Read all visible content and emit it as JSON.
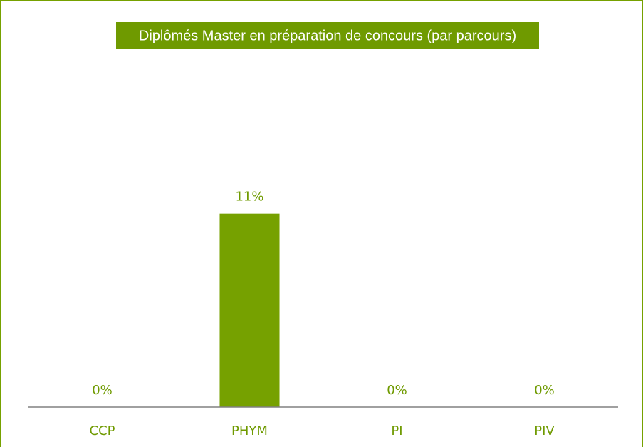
{
  "chart_data": {
    "type": "bar",
    "title": "Diplômés Master en préparation de concours (par parcours)",
    "categories": [
      "CCP",
      "PHYM",
      "PI",
      "PIV"
    ],
    "values": [
      0,
      11,
      0,
      0
    ],
    "value_labels": [
      "0%",
      "11%",
      "0%",
      "0%"
    ],
    "color": "#76a100",
    "ylim": [
      0,
      12
    ]
  }
}
